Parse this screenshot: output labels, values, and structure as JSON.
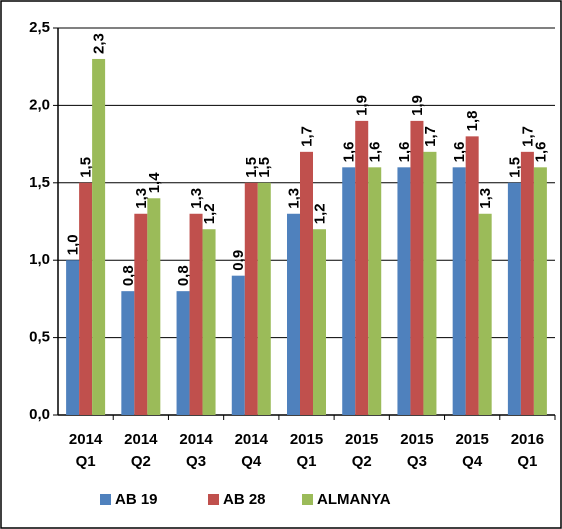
{
  "chart_data": {
    "type": "bar",
    "categories": [
      [
        "2014",
        "Q1"
      ],
      [
        "2014",
        "Q2"
      ],
      [
        "2014",
        "Q3"
      ],
      [
        "2014",
        "Q4"
      ],
      [
        "2015",
        "Q1"
      ],
      [
        "2015",
        "Q2"
      ],
      [
        "2015",
        "Q3"
      ],
      [
        "2015",
        "Q4"
      ],
      [
        "2016",
        "Q1"
      ]
    ],
    "series": [
      {
        "name": "AB 19",
        "color": "#4f81bd",
        "values": [
          1.0,
          0.8,
          0.8,
          0.9,
          1.3,
          1.6,
          1.6,
          1.6,
          1.5
        ],
        "value_labels": [
          "1,0",
          "0,8",
          "0,8",
          "0,9",
          "1,3",
          "1,6",
          "1,6",
          "1,6",
          "1,5"
        ]
      },
      {
        "name": "AB 28",
        "color": "#c0504d",
        "values": [
          1.5,
          1.3,
          1.3,
          1.5,
          1.7,
          1.9,
          1.9,
          1.8,
          1.7
        ],
        "value_labels": [
          "1,5",
          "1,3",
          "1,3",
          "1,5",
          "1,7",
          "1,9",
          "1,9",
          "1,8",
          "1,7"
        ]
      },
      {
        "name": "ALMANYA",
        "color": "#9bbb59",
        "values": [
          2.3,
          1.4,
          1.2,
          1.5,
          1.2,
          1.6,
          1.7,
          1.3,
          1.6
        ],
        "value_labels": [
          "2,3",
          "1,4",
          "1,2",
          "1,5",
          "1,2",
          "1,6",
          "1,7",
          "1,3",
          "1,6"
        ]
      }
    ],
    "ylim": [
      0,
      2.5
    ],
    "yticks": [
      {
        "value": 0,
        "label": "0,0"
      },
      {
        "value": 0.5,
        "label": "0,5"
      },
      {
        "value": 1,
        "label": "1,0"
      },
      {
        "value": 1.5,
        "label": "1,5"
      },
      {
        "value": 2,
        "label": "2,0"
      },
      {
        "value": 2.5,
        "label": "2,5"
      }
    ],
    "grid": true,
    "legend": "bottom"
  }
}
